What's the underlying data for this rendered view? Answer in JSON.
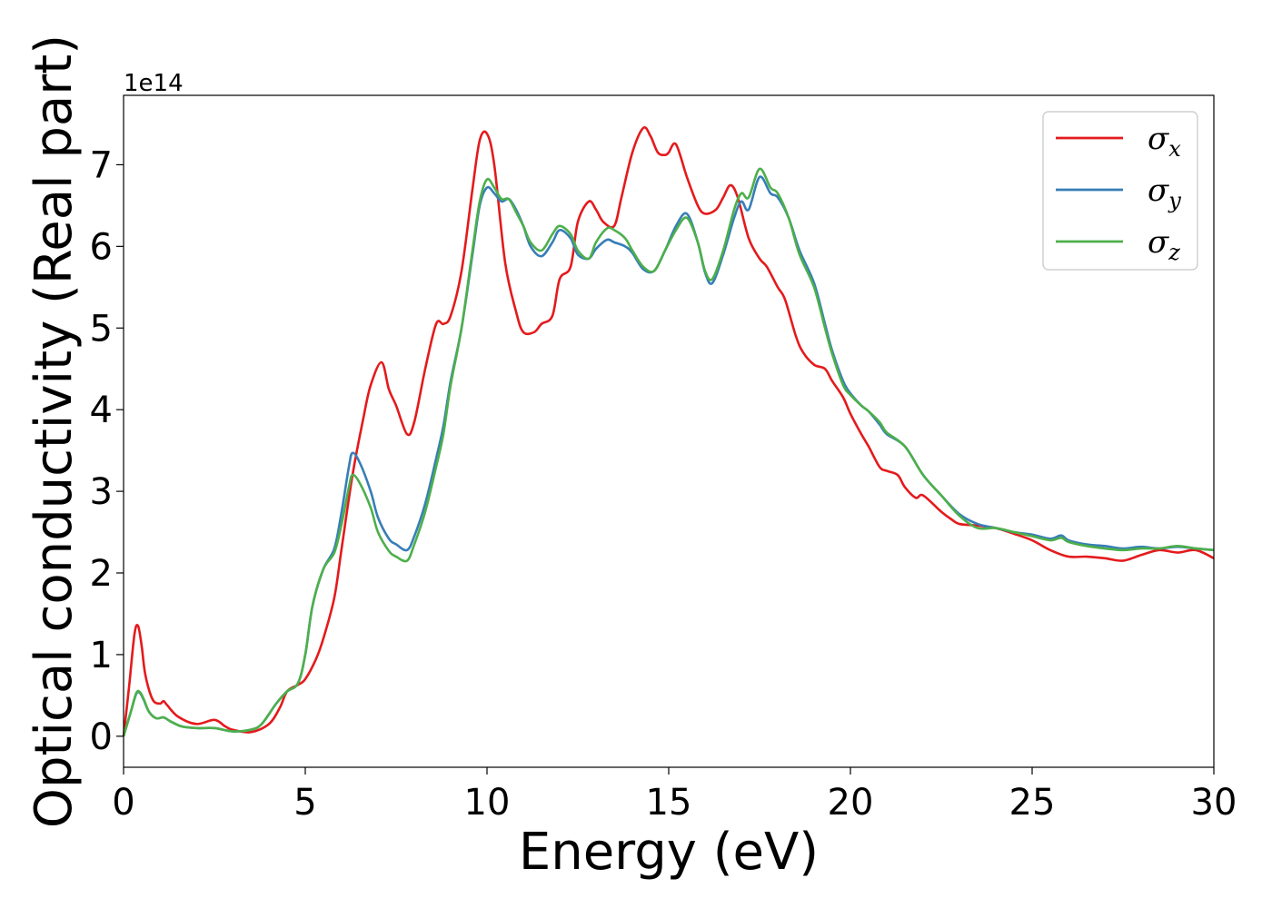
{
  "chart_data": {
    "type": "line",
    "xlabel": "Energy (eV)",
    "ylabel": "Optical conductivity (Real part)",
    "y_offset_label": "1e14",
    "xlim": [
      0,
      30
    ],
    "ylim": [
      -0.38,
      7.85
    ],
    "x_ticks": [
      0,
      5,
      10,
      15,
      20,
      25,
      30
    ],
    "y_ticks": [
      0,
      1,
      2,
      3,
      4,
      5,
      6,
      7
    ],
    "grid": false,
    "legend_position": "top-right",
    "series": [
      {
        "name": "σx",
        "symbol": "σ",
        "subscript": "x",
        "color": "#e41a1c",
        "x": [
          0,
          0.15,
          0.3,
          0.4,
          0.5,
          0.6,
          0.8,
          1.0,
          1.1,
          1.2,
          1.5,
          2.0,
          2.5,
          2.8,
          3.0,
          3.5,
          4.0,
          4.3,
          4.5,
          4.8,
          5.0,
          5.3,
          5.5,
          5.8,
          6.0,
          6.3,
          6.6,
          6.8,
          7.1,
          7.3,
          7.5,
          7.8,
          8.0,
          8.3,
          8.6,
          8.8,
          9.0,
          9.3,
          9.6,
          9.8,
          10.0,
          10.2,
          10.5,
          10.8,
          11.0,
          11.3,
          11.5,
          11.8,
          12.0,
          12.3,
          12.5,
          12.8,
          13.0,
          13.2,
          13.5,
          13.7,
          14.0,
          14.3,
          14.5,
          14.7,
          14.9,
          15.0,
          15.2,
          15.5,
          15.8,
          16.0,
          16.3,
          16.5,
          16.7,
          16.9,
          17.2,
          17.5,
          17.7,
          18.0,
          18.2,
          18.5,
          18.7,
          19.0,
          19.3,
          19.5,
          19.8,
          20.0,
          20.3,
          20.5,
          20.8,
          21.0,
          21.3,
          21.5,
          21.8,
          22.0,
          22.5,
          22.8,
          23.0,
          23.5,
          24.0,
          24.5,
          25.0,
          25.5,
          26.0,
          26.5,
          27.0,
          27.5,
          28.0,
          28.5,
          29.0,
          29.5,
          30.0
        ],
        "values": [
          0,
          0.6,
          1.25,
          1.35,
          1.1,
          0.75,
          0.45,
          0.4,
          0.43,
          0.38,
          0.24,
          0.15,
          0.2,
          0.12,
          0.08,
          0.05,
          0.15,
          0.35,
          0.55,
          0.63,
          0.7,
          0.95,
          1.2,
          1.7,
          2.3,
          3.2,
          3.9,
          4.3,
          4.58,
          4.25,
          4.05,
          3.7,
          3.85,
          4.5,
          5.05,
          5.05,
          5.15,
          5.7,
          6.7,
          7.3,
          7.38,
          7.0,
          5.8,
          5.2,
          4.95,
          4.95,
          5.05,
          5.15,
          5.6,
          5.75,
          6.3,
          6.55,
          6.45,
          6.3,
          6.25,
          6.6,
          7.15,
          7.45,
          7.35,
          7.15,
          7.12,
          7.15,
          7.25,
          6.85,
          6.5,
          6.4,
          6.45,
          6.6,
          6.75,
          6.6,
          6.1,
          5.85,
          5.75,
          5.5,
          5.35,
          4.9,
          4.7,
          4.55,
          4.5,
          4.35,
          4.15,
          3.95,
          3.7,
          3.55,
          3.3,
          3.25,
          3.2,
          3.05,
          2.92,
          2.95,
          2.75,
          2.65,
          2.6,
          2.58,
          2.55,
          2.48,
          2.4,
          2.28,
          2.2,
          2.2,
          2.18,
          2.15,
          2.22,
          2.28,
          2.25,
          2.28,
          2.18
        ]
      },
      {
        "name": "σy",
        "symbol": "σ",
        "subscript": "y",
        "color": "#377eb8",
        "x": [
          0,
          0.2,
          0.35,
          0.45,
          0.55,
          0.7,
          0.9,
          1.1,
          1.3,
          1.6,
          2.0,
          2.5,
          3.0,
          3.5,
          3.8,
          4.2,
          4.5,
          4.8,
          5.0,
          5.2,
          5.5,
          5.8,
          6.0,
          6.2,
          6.3,
          6.5,
          6.8,
          7.0,
          7.3,
          7.5,
          7.8,
          8.0,
          8.3,
          8.6,
          8.8,
          9.0,
          9.3,
          9.6,
          9.8,
          10.0,
          10.2,
          10.4,
          10.6,
          10.8,
          11.0,
          11.2,
          11.5,
          11.8,
          12.0,
          12.3,
          12.5,
          12.8,
          13.0,
          13.3,
          13.5,
          13.8,
          14.0,
          14.3,
          14.6,
          14.9,
          15.2,
          15.5,
          15.8,
          16.0,
          16.2,
          16.5,
          16.8,
          17.0,
          17.2,
          17.5,
          17.8,
          18.0,
          18.3,
          18.6,
          19.0,
          19.3,
          19.5,
          19.8,
          20.0,
          20.3,
          20.5,
          20.8,
          21.0,
          21.5,
          22.0,
          22.5,
          23.0,
          23.5,
          24.0,
          24.5,
          25.0,
          25.5,
          25.8,
          26.0,
          26.5,
          27.0,
          27.5,
          28.0,
          28.5,
          29.0,
          29.5,
          30.0
        ],
        "values": [
          0,
          0.3,
          0.52,
          0.53,
          0.45,
          0.3,
          0.22,
          0.23,
          0.18,
          0.12,
          0.1,
          0.1,
          0.06,
          0.08,
          0.15,
          0.4,
          0.55,
          0.65,
          1.0,
          1.6,
          2.05,
          2.3,
          2.75,
          3.3,
          3.47,
          3.35,
          3.0,
          2.68,
          2.42,
          2.35,
          2.28,
          2.45,
          2.85,
          3.4,
          3.8,
          4.35,
          5.0,
          5.9,
          6.5,
          6.72,
          6.65,
          6.55,
          6.58,
          6.45,
          6.25,
          6.0,
          5.88,
          6.05,
          6.2,
          6.1,
          5.9,
          5.85,
          5.97,
          6.08,
          6.05,
          6.0,
          5.92,
          5.72,
          5.7,
          5.95,
          6.25,
          6.4,
          6.05,
          5.68,
          5.55,
          5.9,
          6.35,
          6.55,
          6.45,
          6.85,
          6.65,
          6.6,
          6.35,
          5.95,
          5.55,
          5.05,
          4.72,
          4.35,
          4.2,
          4.05,
          3.98,
          3.82,
          3.7,
          3.55,
          3.2,
          2.95,
          2.72,
          2.6,
          2.55,
          2.5,
          2.47,
          2.42,
          2.46,
          2.4,
          2.35,
          2.33,
          2.3,
          2.32,
          2.3,
          2.32,
          2.3,
          2.28
        ]
      },
      {
        "name": "σz",
        "symbol": "σ",
        "subscript": "z",
        "color": "#4daf4a",
        "x": [
          0,
          0.2,
          0.35,
          0.45,
          0.55,
          0.7,
          0.9,
          1.1,
          1.3,
          1.6,
          2.0,
          2.5,
          3.0,
          3.5,
          3.8,
          4.2,
          4.5,
          4.8,
          5.0,
          5.2,
          5.5,
          5.8,
          6.0,
          6.2,
          6.3,
          6.5,
          6.8,
          7.0,
          7.3,
          7.5,
          7.8,
          8.0,
          8.3,
          8.6,
          8.8,
          9.0,
          9.3,
          9.6,
          9.8,
          10.0,
          10.2,
          10.4,
          10.6,
          10.8,
          11.0,
          11.2,
          11.5,
          11.8,
          12.0,
          12.3,
          12.5,
          12.8,
          13.0,
          13.3,
          13.5,
          13.8,
          14.0,
          14.3,
          14.6,
          14.9,
          15.2,
          15.5,
          15.8,
          16.0,
          16.2,
          16.5,
          16.8,
          17.0,
          17.2,
          17.5,
          17.8,
          18.0,
          18.3,
          18.6,
          19.0,
          19.3,
          19.5,
          19.8,
          20.0,
          20.3,
          20.5,
          20.8,
          21.0,
          21.5,
          22.0,
          22.5,
          23.0,
          23.5,
          24.0,
          24.5,
          25.0,
          25.5,
          25.8,
          26.0,
          26.5,
          27.0,
          27.5,
          28.0,
          28.5,
          29.0,
          29.5,
          30.0
        ],
        "values": [
          0,
          0.3,
          0.53,
          0.54,
          0.46,
          0.3,
          0.22,
          0.23,
          0.18,
          0.12,
          0.1,
          0.1,
          0.06,
          0.08,
          0.15,
          0.4,
          0.55,
          0.65,
          1.0,
          1.6,
          2.05,
          2.25,
          2.6,
          3.05,
          3.2,
          3.1,
          2.8,
          2.5,
          2.27,
          2.2,
          2.15,
          2.35,
          2.75,
          3.3,
          3.7,
          4.3,
          5.0,
          5.95,
          6.55,
          6.82,
          6.72,
          6.58,
          6.58,
          6.42,
          6.25,
          6.05,
          5.95,
          6.15,
          6.25,
          6.15,
          5.95,
          5.85,
          6.05,
          6.22,
          6.2,
          6.1,
          5.95,
          5.75,
          5.7,
          5.95,
          6.2,
          6.35,
          6.05,
          5.7,
          5.6,
          5.95,
          6.45,
          6.65,
          6.6,
          6.95,
          6.72,
          6.65,
          6.35,
          5.9,
          5.5,
          5.0,
          4.68,
          4.3,
          4.18,
          4.05,
          3.98,
          3.85,
          3.72,
          3.55,
          3.2,
          2.95,
          2.7,
          2.55,
          2.55,
          2.5,
          2.45,
          2.4,
          2.43,
          2.38,
          2.33,
          2.3,
          2.28,
          2.3,
          2.3,
          2.33,
          2.3,
          2.28
        ]
      }
    ]
  }
}
